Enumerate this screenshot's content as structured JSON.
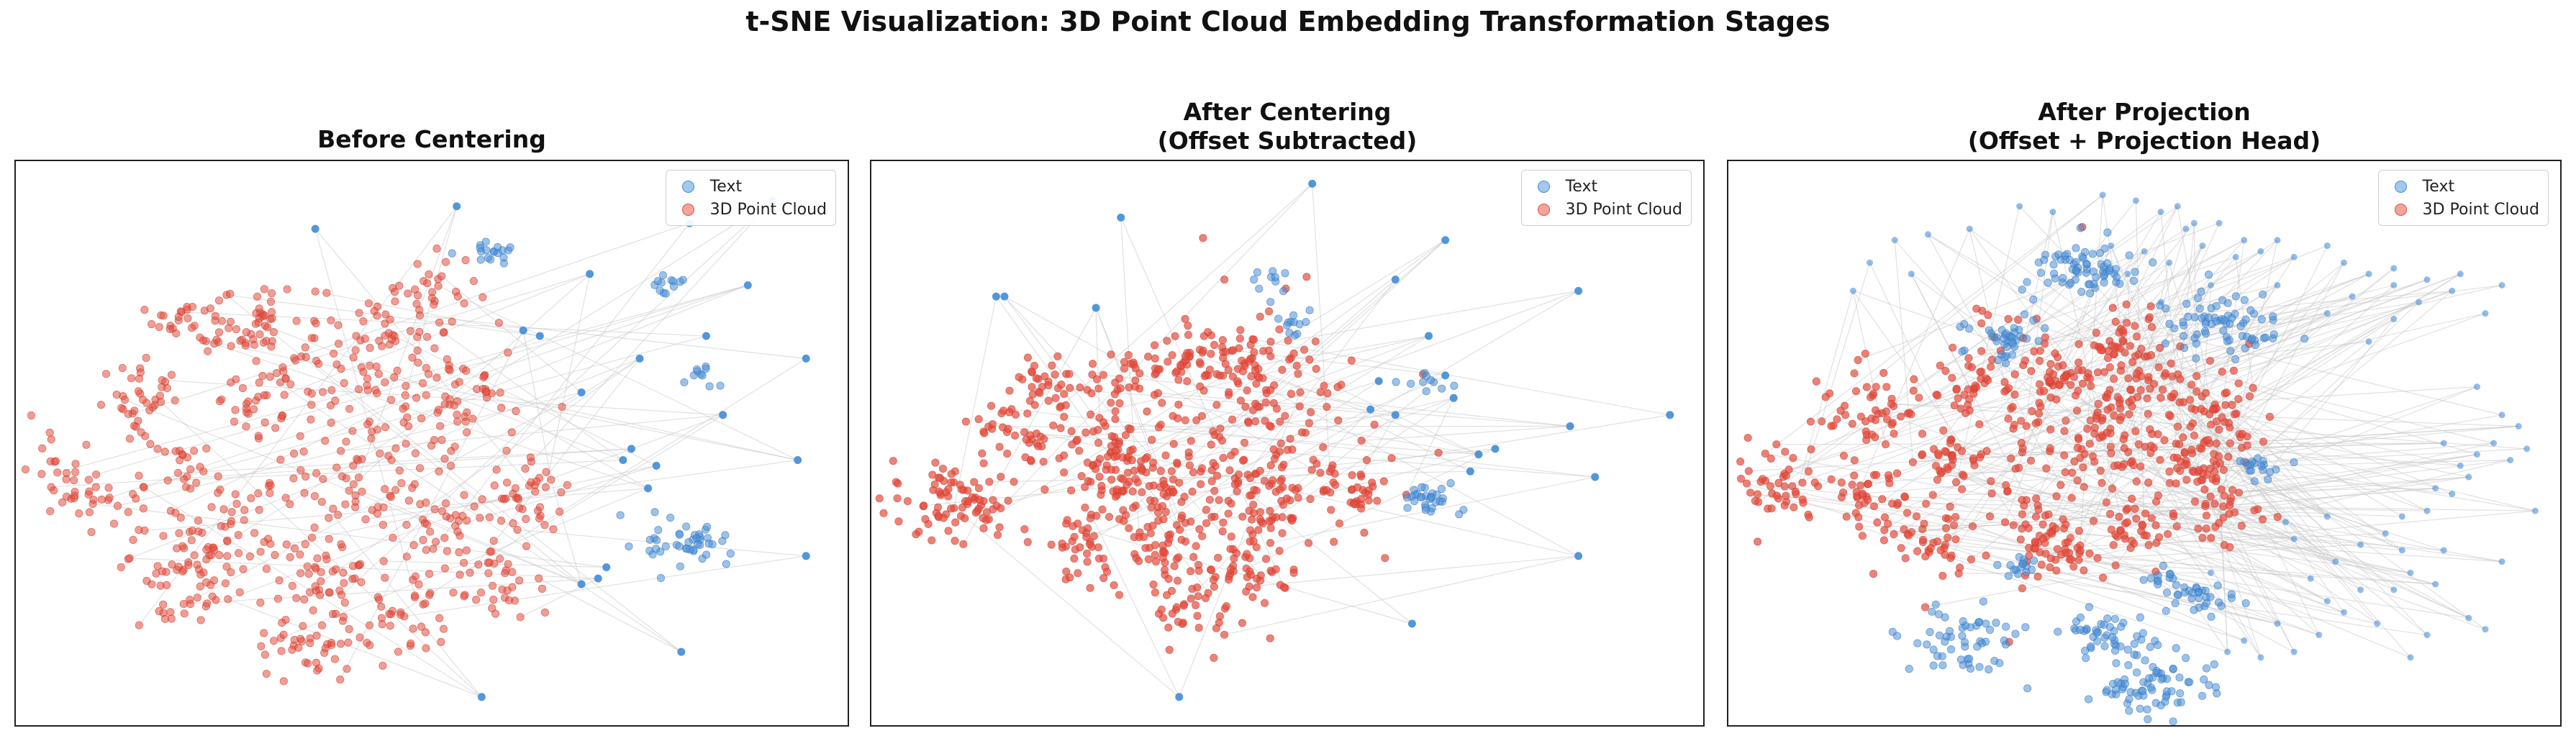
{
  "suptitle": "t-SNE Visualization: 3D Point Cloud Embedding Transformation Stages",
  "colors": {
    "text": "#4a90d9",
    "cloud": "#e74c3c",
    "link": "#c8c8c8"
  },
  "chart_data": [
    {
      "type": "scatter",
      "title": "Before Centering",
      "subtitle": "",
      "legend": [
        "Text",
        "3D Point Cloud"
      ],
      "legend_position": "upper-right",
      "xlabel": "",
      "ylabel": "",
      "ticks": "none",
      "text_clusters": [
        {
          "x": 0.57,
          "y": 0.84,
          "n": 18,
          "r": 0.012
        },
        {
          "x": 0.78,
          "y": 0.78,
          "n": 12,
          "r": 0.012
        },
        {
          "x": 0.82,
          "y": 0.62,
          "n": 10,
          "r": 0.01
        },
        {
          "x": 0.81,
          "y": 0.32,
          "n": 45,
          "r": 0.022
        }
      ],
      "text_points": [
        [
          0.36,
          0.88
        ],
        [
          0.53,
          0.92
        ],
        [
          0.69,
          0.8
        ],
        [
          0.81,
          0.89
        ],
        [
          0.91,
          0.93
        ],
        [
          0.88,
          0.78
        ],
        [
          0.61,
          0.7
        ],
        [
          0.63,
          0.69
        ],
        [
          0.75,
          0.65
        ],
        [
          0.83,
          0.69
        ],
        [
          0.68,
          0.59
        ],
        [
          0.85,
          0.55
        ],
        [
          0.95,
          0.65
        ],
        [
          0.73,
          0.47
        ],
        [
          0.76,
          0.42
        ],
        [
          0.74,
          0.49
        ],
        [
          0.77,
          0.46
        ],
        [
          0.94,
          0.47
        ],
        [
          0.95,
          0.3
        ],
        [
          0.7,
          0.26
        ],
        [
          0.68,
          0.25
        ],
        [
          0.71,
          0.28
        ],
        [
          0.8,
          0.13
        ],
        [
          0.56,
          0.05
        ]
      ],
      "cloud_clusters": [
        {
          "x": 0.21,
          "y": 0.72,
          "n": 30,
          "r": 0.022
        },
        {
          "x": 0.3,
          "y": 0.71,
          "n": 55,
          "r": 0.035
        },
        {
          "x": 0.49,
          "y": 0.75,
          "n": 45,
          "r": 0.035
        },
        {
          "x": 0.42,
          "y": 0.65,
          "n": 45,
          "r": 0.035
        },
        {
          "x": 0.16,
          "y": 0.57,
          "n": 40,
          "r": 0.028
        },
        {
          "x": 0.29,
          "y": 0.58,
          "n": 30,
          "r": 0.025
        },
        {
          "x": 0.54,
          "y": 0.58,
          "n": 35,
          "r": 0.03
        },
        {
          "x": 0.08,
          "y": 0.44,
          "n": 45,
          "r": 0.032
        },
        {
          "x": 0.21,
          "y": 0.45,
          "n": 15,
          "r": 0.018
        },
        {
          "x": 0.4,
          "y": 0.43,
          "n": 170,
          "r": 0.095
        },
        {
          "x": 0.61,
          "y": 0.41,
          "n": 40,
          "r": 0.03
        },
        {
          "x": 0.22,
          "y": 0.33,
          "n": 55,
          "r": 0.04
        },
        {
          "x": 0.19,
          "y": 0.24,
          "n": 35,
          "r": 0.03
        },
        {
          "x": 0.38,
          "y": 0.27,
          "n": 35,
          "r": 0.03
        },
        {
          "x": 0.58,
          "y": 0.25,
          "n": 35,
          "r": 0.03
        },
        {
          "x": 0.47,
          "y": 0.18,
          "n": 35,
          "r": 0.03
        },
        {
          "x": 0.35,
          "y": 0.13,
          "n": 40,
          "r": 0.032
        },
        {
          "x": 0.52,
          "y": 0.35,
          "n": 20,
          "r": 0.02
        }
      ]
    },
    {
      "type": "scatter",
      "title": "After Centering",
      "subtitle": "(Offset Subtracted)",
      "legend": [
        "Text",
        "3D Point Cloud"
      ],
      "legend_position": "upper-right",
      "xlabel": "",
      "ylabel": "",
      "ticks": "none",
      "text_clusters": [
        {
          "x": 0.47,
          "y": 0.79,
          "n": 10,
          "r": 0.012
        },
        {
          "x": 0.51,
          "y": 0.71,
          "n": 12,
          "r": 0.01
        },
        {
          "x": 0.67,
          "y": 0.6,
          "n": 10,
          "r": 0.01
        },
        {
          "x": 0.68,
          "y": 0.4,
          "n": 30,
          "r": 0.018
        }
      ],
      "text_points": [
        [
          0.3,
          0.9
        ],
        [
          0.53,
          0.96
        ],
        [
          0.69,
          0.86
        ],
        [
          0.15,
          0.76
        ],
        [
          0.16,
          0.76
        ],
        [
          0.27,
          0.74
        ],
        [
          0.63,
          0.79
        ],
        [
          0.85,
          0.77
        ],
        [
          0.67,
          0.69
        ],
        [
          0.61,
          0.61
        ],
        [
          0.69,
          0.62
        ],
        [
          0.7,
          0.58
        ],
        [
          0.6,
          0.56
        ],
        [
          0.63,
          0.55
        ],
        [
          0.84,
          0.53
        ],
        [
          0.96,
          0.55
        ],
        [
          0.75,
          0.49
        ],
        [
          0.73,
          0.48
        ],
        [
          0.72,
          0.45
        ],
        [
          0.87,
          0.44
        ],
        [
          0.85,
          0.3
        ],
        [
          0.65,
          0.18
        ],
        [
          0.37,
          0.05
        ]
      ],
      "cloud_clusters": [
        {
          "x": 0.21,
          "y": 0.61,
          "n": 30,
          "r": 0.022
        },
        {
          "x": 0.31,
          "y": 0.62,
          "n": 25,
          "r": 0.02
        },
        {
          "x": 0.38,
          "y": 0.65,
          "n": 30,
          "r": 0.022
        },
        {
          "x": 0.45,
          "y": 0.64,
          "n": 35,
          "r": 0.025
        },
        {
          "x": 0.18,
          "y": 0.51,
          "n": 45,
          "r": 0.03
        },
        {
          "x": 0.28,
          "y": 0.51,
          "n": 40,
          "r": 0.03
        },
        {
          "x": 0.44,
          "y": 0.51,
          "n": 220,
          "r": 0.09
        },
        {
          "x": 0.07,
          "y": 0.4,
          "n": 45,
          "r": 0.03
        },
        {
          "x": 0.12,
          "y": 0.39,
          "n": 35,
          "r": 0.025
        },
        {
          "x": 0.28,
          "y": 0.43,
          "n": 45,
          "r": 0.03
        },
        {
          "x": 0.35,
          "y": 0.4,
          "n": 35,
          "r": 0.028
        },
        {
          "x": 0.47,
          "y": 0.37,
          "n": 40,
          "r": 0.03
        },
        {
          "x": 0.59,
          "y": 0.41,
          "n": 30,
          "r": 0.02
        },
        {
          "x": 0.35,
          "y": 0.33,
          "n": 35,
          "r": 0.025
        },
        {
          "x": 0.25,
          "y": 0.31,
          "n": 35,
          "r": 0.025
        },
        {
          "x": 0.45,
          "y": 0.27,
          "n": 35,
          "r": 0.025
        },
        {
          "x": 0.38,
          "y": 0.22,
          "n": 40,
          "r": 0.03
        }
      ]
    },
    {
      "type": "scatter",
      "title": "After Projection",
      "subtitle": "(Offset + Projection Head)",
      "legend": [
        "Text",
        "3D Point Cloud"
      ],
      "legend_position": "upper-right",
      "xlabel": "",
      "ylabel": "",
      "ticks": "none",
      "text_clusters": [
        {
          "x": 0.43,
          "y": 0.81,
          "n": 70,
          "r": 0.03
        },
        {
          "x": 0.6,
          "y": 0.71,
          "n": 70,
          "r": 0.032
        },
        {
          "x": 0.33,
          "y": 0.69,
          "n": 40,
          "r": 0.022
        },
        {
          "x": 0.64,
          "y": 0.46,
          "n": 18,
          "r": 0.012
        },
        {
          "x": 0.35,
          "y": 0.28,
          "n": 15,
          "r": 0.01
        },
        {
          "x": 0.52,
          "y": 0.26,
          "n": 12,
          "r": 0.01
        },
        {
          "x": 0.56,
          "y": 0.23,
          "n": 30,
          "r": 0.018
        },
        {
          "x": 0.28,
          "y": 0.15,
          "n": 55,
          "r": 0.03
        },
        {
          "x": 0.45,
          "y": 0.16,
          "n": 45,
          "r": 0.025
        },
        {
          "x": 0.51,
          "y": 0.07,
          "n": 70,
          "r": 0.03
        }
      ],
      "text_points": [
        [
          0.2,
          0.86
        ],
        [
          0.24,
          0.87
        ],
        [
          0.29,
          0.88
        ],
        [
          0.35,
          0.92
        ],
        [
          0.39,
          0.91
        ],
        [
          0.45,
          0.94
        ],
        [
          0.49,
          0.93
        ],
        [
          0.52,
          0.91
        ],
        [
          0.54,
          0.92
        ],
        [
          0.55,
          0.88
        ],
        [
          0.56,
          0.89
        ],
        [
          0.57,
          0.85
        ],
        [
          0.59,
          0.89
        ],
        [
          0.61,
          0.83
        ],
        [
          0.62,
          0.86
        ],
        [
          0.64,
          0.84
        ],
        [
          0.66,
          0.86
        ],
        [
          0.68,
          0.83
        ],
        [
          0.72,
          0.85
        ],
        [
          0.74,
          0.82
        ],
        [
          0.77,
          0.8
        ],
        [
          0.8,
          0.78
        ],
        [
          0.83,
          0.75
        ],
        [
          0.87,
          0.77
        ],
        [
          0.91,
          0.73
        ],
        [
          0.5,
          0.84
        ],
        [
          0.53,
          0.82
        ],
        [
          0.17,
          0.82
        ],
        [
          0.22,
          0.8
        ],
        [
          0.15,
          0.77
        ],
        [
          0.75,
          0.76
        ],
        [
          0.8,
          0.72
        ],
        [
          0.88,
          0.8
        ],
        [
          0.93,
          0.78
        ],
        [
          0.52,
          0.75
        ],
        [
          0.72,
          0.73
        ],
        [
          0.77,
          0.68
        ],
        [
          0.58,
          0.78
        ],
        [
          0.66,
          0.78
        ],
        [
          0.8,
          0.81
        ],
        [
          0.84,
          0.79
        ],
        [
          0.46,
          0.85
        ],
        [
          0.48,
          0.8
        ],
        [
          0.9,
          0.6
        ],
        [
          0.89,
          0.44
        ],
        [
          0.88,
          0.46
        ],
        [
          0.86,
          0.5
        ],
        [
          0.9,
          0.48
        ],
        [
          0.93,
          0.55
        ],
        [
          0.92,
          0.5
        ],
        [
          0.95,
          0.53
        ],
        [
          0.96,
          0.49
        ],
        [
          0.94,
          0.47
        ],
        [
          0.97,
          0.38
        ],
        [
          0.87,
          0.41
        ],
        [
          0.84,
          0.38
        ],
        [
          0.81,
          0.31
        ],
        [
          0.86,
          0.31
        ],
        [
          0.93,
          0.29
        ],
        [
          0.85,
          0.25
        ],
        [
          0.8,
          0.24
        ],
        [
          0.82,
          0.27
        ],
        [
          0.73,
          0.29
        ],
        [
          0.76,
          0.32
        ],
        [
          0.79,
          0.34
        ],
        [
          0.68,
          0.33
        ],
        [
          0.7,
          0.26
        ],
        [
          0.72,
          0.22
        ],
        [
          0.74,
          0.2
        ],
        [
          0.76,
          0.24
        ],
        [
          0.78,
          0.18
        ],
        [
          0.89,
          0.19
        ],
        [
          0.91,
          0.17
        ],
        [
          0.84,
          0.16
        ],
        [
          0.66,
          0.18
        ],
        [
          0.62,
          0.15
        ],
        [
          0.68,
          0.13
        ],
        [
          0.71,
          0.16
        ],
        [
          0.82,
          0.12
        ],
        [
          0.64,
          0.12
        ],
        [
          0.6,
          0.13
        ],
        [
          0.58,
          0.27
        ],
        [
          0.67,
          0.36
        ],
        [
          0.72,
          0.37
        ],
        [
          0.81,
          0.37
        ],
        [
          0.85,
          0.42
        ]
      ],
      "cloud_clusters": [
        {
          "x": 0.47,
          "y": 0.68,
          "n": 25,
          "r": 0.02
        },
        {
          "x": 0.29,
          "y": 0.6,
          "n": 25,
          "r": 0.02
        },
        {
          "x": 0.4,
          "y": 0.62,
          "n": 30,
          "r": 0.02
        },
        {
          "x": 0.5,
          "y": 0.6,
          "n": 30,
          "r": 0.025
        },
        {
          "x": 0.17,
          "y": 0.56,
          "n": 50,
          "r": 0.03
        },
        {
          "x": 0.43,
          "y": 0.52,
          "n": 240,
          "r": 0.09
        },
        {
          "x": 0.59,
          "y": 0.55,
          "n": 45,
          "r": 0.03
        },
        {
          "x": 0.26,
          "y": 0.47,
          "n": 30,
          "r": 0.022
        },
        {
          "x": 0.55,
          "y": 0.46,
          "n": 30,
          "r": 0.022
        },
        {
          "x": 0.06,
          "y": 0.42,
          "n": 45,
          "r": 0.028
        },
        {
          "x": 0.16,
          "y": 0.41,
          "n": 40,
          "r": 0.025
        },
        {
          "x": 0.24,
          "y": 0.33,
          "n": 45,
          "r": 0.028
        },
        {
          "x": 0.37,
          "y": 0.34,
          "n": 35,
          "r": 0.025
        },
        {
          "x": 0.59,
          "y": 0.39,
          "n": 35,
          "r": 0.025
        },
        {
          "x": 0.49,
          "y": 0.34,
          "n": 25,
          "r": 0.02
        },
        {
          "x": 0.41,
          "y": 0.3,
          "n": 25,
          "r": 0.02
        }
      ]
    }
  ]
}
